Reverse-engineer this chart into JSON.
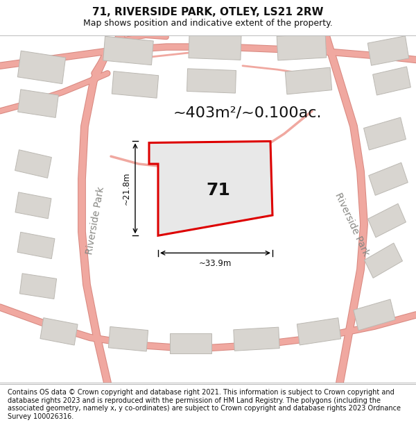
{
  "title": "71, RIVERSIDE PARK, OTLEY, LS21 2RW",
  "subtitle": "Map shows position and indicative extent of the property.",
  "footer": "Contains OS data © Crown copyright and database right 2021. This information is subject to Crown copyright and database rights 2023 and is reproduced with the permission of HM Land Registry. The polygons (including the associated geometry, namely x, y co-ordinates) are subject to Crown copyright and database rights 2023 Ordnance Survey 100026316.",
  "area_text": "~403m²/~0.100ac.",
  "property_number": "71",
  "dim_width": "~33.9m",
  "dim_height": "~21.8m",
  "map_bg": "#ffffff",
  "property_fill": "#e8e8e8",
  "property_edge": "#dd0000",
  "road_line_color": "#f0a8a0",
  "road_outline_color": "#d88880",
  "building_fill": "#d8d5d0",
  "building_stroke": "#bbb8b2",
  "text_color": "#111111",
  "road_label_color": "#888884",
  "title_fontsize": 11,
  "subtitle_fontsize": 9,
  "footer_fontsize": 7.0,
  "area_fontsize": 16,
  "number_fontsize": 18,
  "dim_fontsize": 8.5,
  "road_label_fontsize": 10
}
